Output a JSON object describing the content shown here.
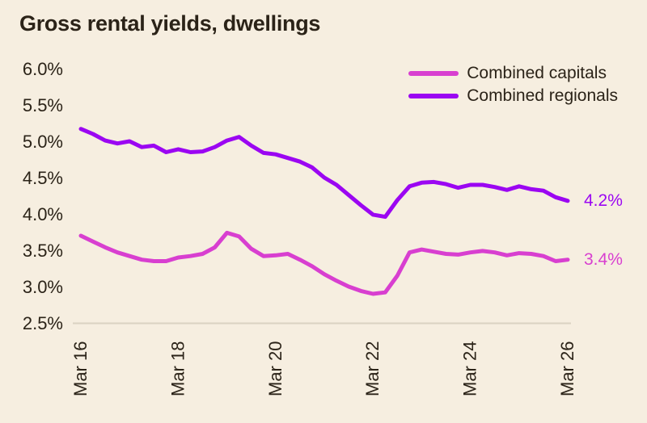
{
  "chart_data": {
    "type": "line",
    "title": "Gross rental yields, dwellings",
    "xlabel": "",
    "ylabel": "",
    "ylim": [
      2.5,
      6.0
    ],
    "grid": false,
    "legend_position": "top-right",
    "colors": {
      "background": "#F6EEE0",
      "text": "#2B2318",
      "axis_line": "#DAD2C2",
      "capitals": "#D83FD0",
      "regionals": "#9B06F2"
    },
    "y_ticks": [
      "6.0%",
      "5.5%",
      "5.0%",
      "4.5%",
      "4.0%",
      "3.5%",
      "3.0%",
      "2.5%"
    ],
    "x_ticks": [
      "Mar 16",
      "Mar 18",
      "Mar 20",
      "Mar 22",
      "Mar 24",
      "Mar 26"
    ],
    "x": [
      "Mar 16",
      "Jun 16",
      "Sep 16",
      "Dec 16",
      "Mar 17",
      "Jun 17",
      "Sep 17",
      "Dec 17",
      "Mar 18",
      "Jun 18",
      "Sep 18",
      "Dec 18",
      "Mar 19",
      "Jun 19",
      "Sep 19",
      "Dec 19",
      "Mar 20",
      "Jun 20",
      "Sep 20",
      "Dec 20",
      "Mar 21",
      "Jun 21",
      "Sep 21",
      "Dec 21",
      "Mar 22",
      "Jun 22",
      "Sep 22",
      "Dec 22",
      "Mar 23",
      "Jun 23",
      "Sep 23",
      "Dec 23",
      "Mar 24",
      "Jun 24",
      "Sep 24",
      "Dec 24",
      "Mar 25",
      "Jun 25",
      "Sep 25",
      "Dec 25",
      "Mar 26"
    ],
    "series": [
      {
        "name": "Combined capitals",
        "color": "#D83FD0",
        "end_label": "3.4%",
        "values": [
          3.7,
          3.62,
          3.54,
          3.47,
          3.42,
          3.37,
          3.35,
          3.35,
          3.4,
          3.42,
          3.45,
          3.54,
          3.74,
          3.69,
          3.52,
          3.42,
          3.43,
          3.45,
          3.37,
          3.28,
          3.17,
          3.08,
          3.0,
          2.94,
          2.9,
          2.92,
          3.15,
          3.47,
          3.51,
          3.48,
          3.45,
          3.44,
          3.47,
          3.49,
          3.47,
          3.43,
          3.46,
          3.45,
          3.42,
          3.35,
          3.37
        ]
      },
      {
        "name": "Combined regionals",
        "color": "#9B06F2",
        "end_label": "4.2%",
        "values": [
          5.17,
          5.1,
          5.01,
          4.97,
          5.0,
          4.92,
          4.94,
          4.85,
          4.89,
          4.85,
          4.86,
          4.92,
          5.01,
          5.06,
          4.94,
          4.84,
          4.82,
          4.77,
          4.72,
          4.64,
          4.5,
          4.4,
          4.26,
          4.12,
          3.99,
          3.96,
          4.19,
          4.38,
          4.43,
          4.44,
          4.41,
          4.36,
          4.4,
          4.4,
          4.37,
          4.33,
          4.38,
          4.34,
          4.32,
          4.23,
          4.18
        ]
      }
    ]
  }
}
